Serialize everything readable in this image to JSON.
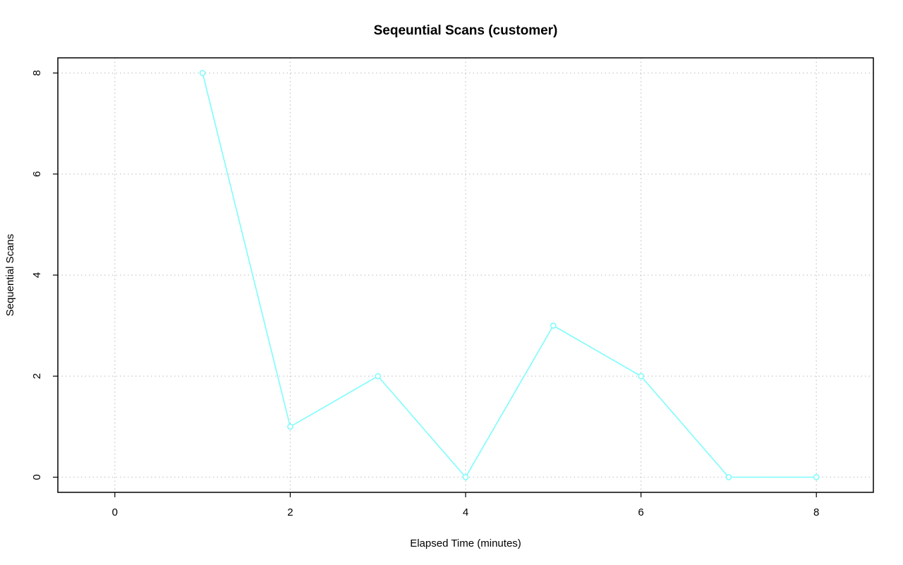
{
  "chart_data": {
    "type": "line",
    "title": "Seqeuntial Scans (customer)",
    "xlabel": "Elapsed Time (minutes)",
    "ylabel": "Sequential Scans",
    "xlim": [
      -0.65,
      8.65
    ],
    "ylim": [
      -0.3,
      8.3
    ],
    "x_ticks": [
      0,
      2,
      4,
      6,
      8
    ],
    "y_ticks": [
      0,
      2,
      4,
      6,
      8
    ],
    "grid": true,
    "series": [
      {
        "color": "#7ffcfc",
        "x": [
          1,
          2,
          3,
          4,
          5,
          6,
          7,
          8
        ],
        "y": [
          8,
          1,
          2,
          0,
          3,
          2,
          0,
          0
        ]
      }
    ]
  }
}
